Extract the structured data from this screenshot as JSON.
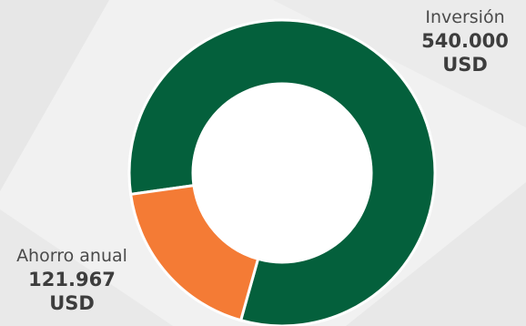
{
  "chart_data": {
    "type": "pie",
    "donut": true,
    "slices": [
      {
        "name": "Inversión",
        "value": 540000,
        "value_label": "540.000",
        "unit": "USD",
        "color": "#04603c"
      },
      {
        "name": "Ahorro anual",
        "value": 121967,
        "value_label": "121.967",
        "unit": "USD",
        "color": "#f47b35"
      }
    ]
  }
}
